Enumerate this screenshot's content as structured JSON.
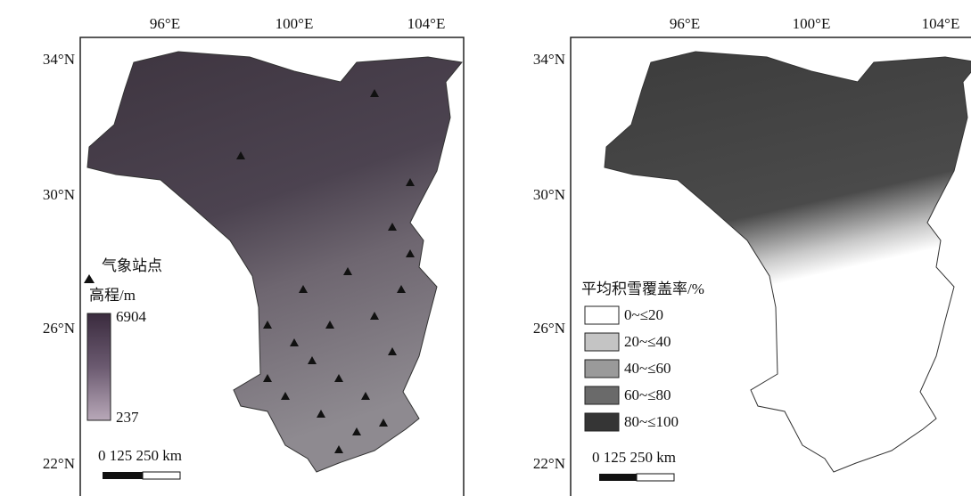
{
  "panels": [
    {
      "lon_labels": [
        "96°E",
        "100°E",
        "104°E"
      ],
      "lat_labels": [
        "34°N",
        "30°N",
        "26°N",
        "22°N"
      ],
      "station_legend": "气象站点",
      "elevation_title": "高程/m",
      "elevation_max": "6904",
      "elevation_min": "237",
      "scale_bar": "0  125  250 km"
    },
    {
      "lon_labels": [
        "96°E",
        "100°E",
        "104°E"
      ],
      "lat_labels": [
        "34°N",
        "30°N",
        "26°N",
        "22°N"
      ],
      "legend_title": "平均积雪覆盖率/%",
      "legend_items": [
        "0~≤20",
        "20~≤40",
        "40~≤60",
        "60~≤80",
        "80~≤100"
      ],
      "scale_bar": "0  125  250 km"
    }
  ]
}
